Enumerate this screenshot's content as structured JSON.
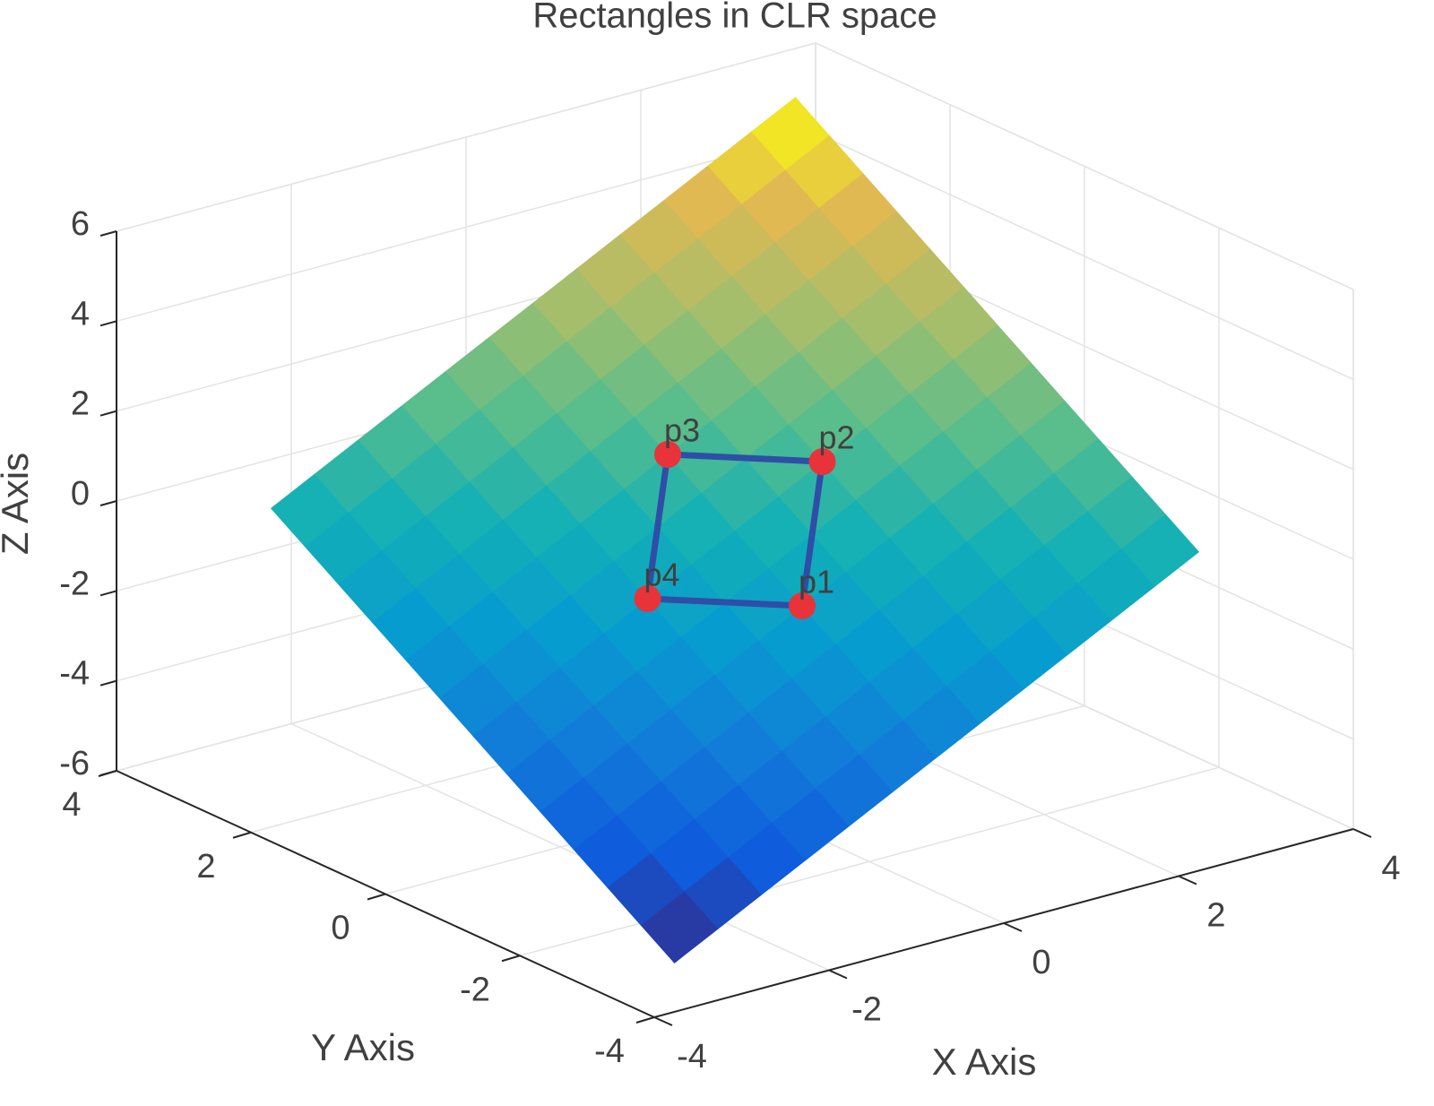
{
  "chart_data": {
    "type": "surface3d",
    "title": "Rectangles in CLR space",
    "xlabel": "X Axis",
    "ylabel": "Y Axis",
    "zlabel": "Z Axis",
    "xlim": [
      -4,
      4
    ],
    "ylim": [
      -4,
      4
    ],
    "zlim": [
      -6,
      6
    ],
    "xticks": [
      -4,
      -2,
      0,
      2,
      4
    ],
    "yticks": [
      -4,
      -2,
      0,
      2,
      4
    ],
    "zticks": [
      -6,
      -4,
      -2,
      0,
      2,
      4,
      6
    ],
    "grid": true,
    "colormap": "parula",
    "surface": {
      "x": [
        -3,
        -2.5,
        -2,
        -1.5,
        -1,
        -0.5,
        0,
        0.5,
        1,
        1.5,
        2,
        2.5,
        3
      ],
      "y": [
        -3,
        -2.5,
        -2,
        -1.5,
        -1,
        -0.5,
        0,
        0.5,
        1,
        1.5,
        2,
        2.5,
        3
      ],
      "z": [
        [
          -6,
          -5.5,
          -5,
          -4.5,
          -4,
          -3.5,
          -3,
          -2.5,
          -2,
          -1.5,
          -1,
          -0.5,
          0
        ],
        [
          -5.5,
          -5,
          -4.5,
          -4,
          -3.5,
          -3,
          -2.5,
          -2,
          -1.5,
          -1,
          -0.5,
          0,
          0.5
        ],
        [
          -5,
          -4.5,
          -4,
          -3.5,
          -3,
          -2.5,
          -2,
          -1.5,
          -1,
          -0.5,
          0,
          0.5,
          1
        ],
        [
          -4.5,
          -4,
          -3.5,
          -3,
          -2.5,
          -2,
          -1.5,
          -1,
          -0.5,
          0,
          0.5,
          1,
          1.5
        ],
        [
          -4,
          -3.5,
          -3,
          -2.5,
          -2,
          -1.5,
          -1,
          -0.5,
          0,
          0.5,
          1,
          1.5,
          2
        ],
        [
          -3.5,
          -3,
          -2.5,
          -2,
          -1.5,
          -1,
          -0.5,
          0,
          0.5,
          1,
          1.5,
          2,
          2.5
        ],
        [
          -3,
          -2.5,
          -2,
          -1.5,
          -1,
          -0.5,
          0,
          0.5,
          1,
          1.5,
          2,
          2.5,
          3
        ],
        [
          -2.5,
          -2,
          -1.5,
          -1,
          -0.5,
          0,
          0.5,
          1,
          1.5,
          2,
          2.5,
          3,
          3.5
        ],
        [
          -2,
          -1.5,
          -1,
          -0.5,
          0,
          0.5,
          1,
          1.5,
          2,
          2.5,
          3,
          3.5,
          4
        ],
        [
          -1.5,
          -1,
          -0.5,
          0,
          0.5,
          1,
          1.5,
          2,
          2.5,
          3,
          3.5,
          4,
          4.5
        ],
        [
          -1,
          -0.5,
          0,
          0.5,
          1,
          1.5,
          2,
          2.5,
          3,
          3.5,
          4,
          4.5,
          5
        ],
        [
          -0.5,
          0,
          0.5,
          1,
          1.5,
          2,
          2.5,
          3,
          3.5,
          4,
          4.5,
          5,
          5.5
        ],
        [
          0,
          0.5,
          1,
          1.5,
          2,
          2.5,
          3,
          3.5,
          4,
          4.5,
          5,
          5.5,
          6
        ]
      ]
    },
    "points": {
      "labels": [
        "p1",
        "p2",
        "p3",
        "p4"
      ],
      "x": [
        0,
        1,
        0,
        -1
      ],
      "y": [
        -1,
        0,
        1,
        0
      ],
      "z": [
        -1,
        1,
        1,
        -1
      ],
      "marker_color": "#e8333a",
      "line_color": "#2f4ea6"
    }
  }
}
